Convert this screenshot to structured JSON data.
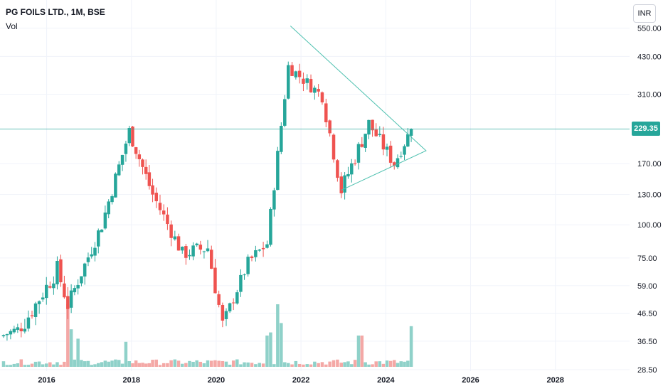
{
  "header": {
    "title": "PG FOILS LTD., 1M, BSE",
    "volume_label": "Vol",
    "currency_label": "INR"
  },
  "last_price": {
    "label": "229.35",
    "value": 229.35
  },
  "colors": {
    "up": "#26a69a",
    "down": "#ef5350",
    "vol_up": "#8fd1c9",
    "vol_down": "#f4a8a6",
    "pattern": "#4fc1b0",
    "price_line": "#26a69a"
  },
  "chart_data": {
    "type": "candlestick",
    "y_scale": "log",
    "ylim": [
      28.5,
      620
    ],
    "y_ticks": [
      550,
      430,
      310,
      229.35,
      170,
      130,
      100,
      75,
      59,
      46.5,
      36.5,
      28.5
    ],
    "y_tick_labels": [
      "550.00",
      "430.00",
      "310.00",
      "229.35",
      "170.00",
      "130.00",
      "100.00",
      "75.00",
      "59.00",
      "46.50",
      "36.50",
      "28.50"
    ],
    "x_ticks": [
      2016,
      2018,
      2020,
      2022,
      2024,
      2026,
      2028
    ],
    "x_tick_labels": [
      "2016",
      "2018",
      "2020",
      "2022",
      "2024",
      "2026",
      "2028"
    ],
    "xlim": [
      2014.9,
      2029.75
    ],
    "segments": [
      {
        "from": [
          2014.9,
          38
        ],
        "to": [
          2015.4,
          41
        ],
        "n": 6,
        "wiggle": 0.06
      },
      {
        "from": [
          2015.4,
          41
        ],
        "to": [
          2016.25,
          68
        ],
        "n": 10,
        "wiggle": 0.1
      },
      {
        "from": [
          2016.25,
          68
        ],
        "to": [
          2016.5,
          50
        ],
        "n": 3,
        "wiggle": 0.1
      },
      {
        "from": [
          2016.5,
          50
        ],
        "to": [
          2017.3,
          100
        ],
        "n": 10,
        "wiggle": 0.08
      },
      {
        "from": [
          2017.3,
          100
        ],
        "to": [
          2017.95,
          225
        ],
        "n": 8,
        "wiggle": 0.08
      },
      {
        "from": [
          2017.95,
          225
        ],
        "to": [
          2018.5,
          130
        ],
        "n": 7,
        "wiggle": 0.08
      },
      {
        "from": [
          2018.5,
          130
        ],
        "to": [
          2019.2,
          78
        ],
        "n": 8,
        "wiggle": 0.08
      },
      {
        "from": [
          2019.2,
          78
        ],
        "to": [
          2019.8,
          82
        ],
        "n": 7,
        "wiggle": 0.09
      },
      {
        "from": [
          2019.8,
          82
        ],
        "to": [
          2020.15,
          42
        ],
        "n": 4,
        "wiggle": 0.1
      },
      {
        "from": [
          2020.15,
          42
        ],
        "to": [
          2020.75,
          72
        ],
        "n": 7,
        "wiggle": 0.07
      },
      {
        "from": [
          2020.75,
          72
        ],
        "to": [
          2021.2,
          85
        ],
        "n": 5,
        "wiggle": 0.08
      },
      {
        "from": [
          2021.2,
          85
        ],
        "to": [
          2021.7,
          395
        ],
        "n": 6,
        "wiggle": 0.07
      },
      {
        "from": [
          2021.7,
          395
        ],
        "to": [
          2022.5,
          305
        ],
        "n": 9,
        "wiggle": 0.07
      },
      {
        "from": [
          2022.5,
          305
        ],
        "to": [
          2022.95,
          135
        ],
        "n": 5,
        "wiggle": 0.09
      },
      {
        "from": [
          2022.95,
          135
        ],
        "to": [
          2023.6,
          240
        ],
        "n": 8,
        "wiggle": 0.09
      },
      {
        "from": [
          2023.6,
          240
        ],
        "to": [
          2024.2,
          170
        ],
        "n": 7,
        "wiggle": 0.08
      },
      {
        "from": [
          2024.2,
          170
        ],
        "to": [
          2024.6,
          229.35
        ],
        "n": 5,
        "wiggle": 0.07
      }
    ],
    "volume_spikes": [
      {
        "x": 2016.5,
        "v": 1.0
      },
      {
        "x": 2016.6,
        "v": 0.6
      },
      {
        "x": 2016.75,
        "v": 0.45
      },
      {
        "x": 2017.85,
        "v": 0.4
      },
      {
        "x": 2021.2,
        "v": 0.5
      },
      {
        "x": 2021.3,
        "v": 0.55
      },
      {
        "x": 2021.45,
        "v": 1.0
      },
      {
        "x": 2021.55,
        "v": 0.7
      },
      {
        "x": 2023.4,
        "v": 0.5
      },
      {
        "x": 2024.6,
        "v": 0.65
      }
    ],
    "triangle": {
      "apex_top": {
        "x": 2021.75,
        "y": 560
      },
      "apex_bottom": {
        "x": 2022.95,
        "y": 135
      },
      "tip": {
        "x": 2024.95,
        "y": 190
      }
    }
  }
}
